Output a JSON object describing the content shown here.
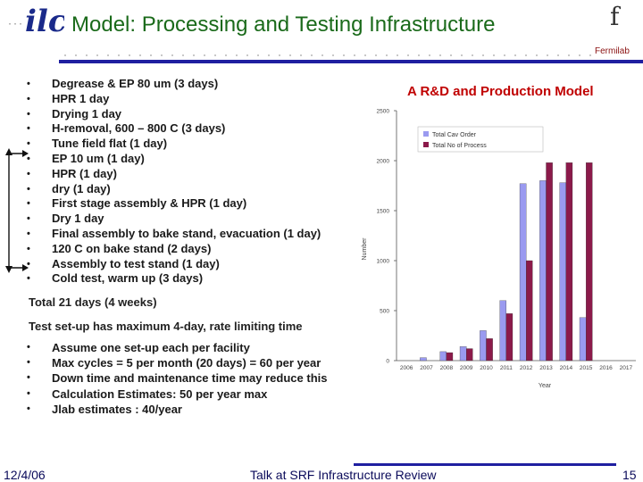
{
  "header": {
    "title": "Model: Processing and Testing Infrastructure",
    "logo_text": "ilc",
    "fermi_symbol": "f",
    "fermi_label": "Fermilab"
  },
  "process_steps": [
    "Degrease &  EP 80 um (3 days)",
    "HPR 1 day",
    "Drying  1 day",
    "H-removal, 600 – 800 C (3 days)",
    "Tune field flat (1 day)",
    "EP 10 um (1 day)",
    "HPR (1 day)",
    "dry (1 day)",
    "First stage assembly & HPR (1 day)",
    "Dry 1 day",
    "Final assembly to bake stand, evacuation (1 day)",
    "120 C on bake stand (2 days)",
    "Assembly to test stand (1 day)",
    "Cold test, warm up (3 days)"
  ],
  "bullet": "•",
  "total_text": "Total 21 days (4 weeks)",
  "setup_text": "Test set-up has maximum 4-day, rate limiting time",
  "notes": [
    "Assume one set-up each per facility",
    "Max cycles = 5 per month (20 days) = 60 per year",
    "Down time and maintenance time may reduce this",
    "Calculation Estimates: 50 per year max",
    "Jlab estimates : 40/year"
  ],
  "chart_data": {
    "type": "bar",
    "title": "A R&D and Production Model",
    "categories": [
      "2006",
      "2007",
      "2008",
      "2009",
      "2010",
      "2011",
      "2012",
      "2013",
      "2014",
      "2015",
      "2016",
      "2017"
    ],
    "series": [
      {
        "name": "Total Cav Order",
        "values": [
          0,
          30,
          90,
          140,
          300,
          600,
          1770,
          1800,
          1780,
          430,
          0,
          0
        ],
        "color": "#9a9af0"
      },
      {
        "name": "Total No of Process",
        "values": [
          0,
          0,
          80,
          120,
          220,
          470,
          1000,
          1980,
          1980,
          1980,
          0,
          0
        ],
        "color": "#8b1a4a"
      }
    ],
    "ylabel": "Number",
    "xlabel": "Year",
    "yticks": [
      0,
      500,
      1000,
      1500,
      2000,
      2500
    ],
    "ylim": [
      0,
      2500
    ],
    "legend_position": "top-left",
    "grid": false
  },
  "footer": {
    "date": "12/4/06",
    "talk": "Talk at SRF Infrastructure Review",
    "page": "15"
  },
  "colors": {
    "title_green": "#1a6a1a",
    "accent_blue": "#1f1fa0",
    "chart_title_red": "#c00000"
  }
}
